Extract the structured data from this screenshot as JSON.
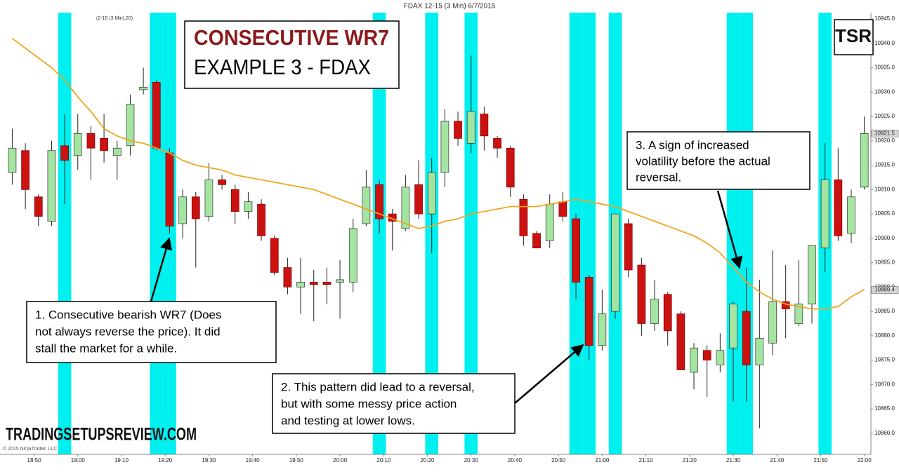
{
  "chart_data": {
    "type": "candlestick",
    "title": "FDAX 12-15 (3 Min)  6/7/2015",
    "indicator_label": "(2-15 (3 Min),20)",
    "copyright": "© 2015 NinjaTrader, LLC",
    "heading": [
      "CONSECUTIVE WR7",
      "EXAMPLE 3 - FDAX"
    ],
    "logo": "TSR",
    "watermark": "TRADINGSETUPSREVIEW.COM",
    "x": [
      1125,
      1128,
      1131,
      1134,
      1137,
      1140,
      1143,
      1146,
      1149,
      1152,
      1155,
      1158,
      1161,
      1164,
      1167,
      1170,
      1173,
      1176,
      1179,
      1182,
      1185,
      1188,
      1191,
      1194,
      1197,
      1200,
      1203,
      1206,
      1209,
      1212,
      1215,
      1218,
      1221,
      1224,
      1227,
      1230,
      1233,
      1236,
      1239,
      1242,
      1245,
      1248,
      1251,
      1254,
      1257,
      1260,
      1263,
      1266,
      1269,
      1272,
      1275,
      1278,
      1281,
      1284,
      1287,
      1290,
      1293,
      1296,
      1299,
      1302,
      1305,
      1308,
      1311,
      1314,
      1317,
      1320
    ],
    "open": [
      10913.5,
      10918,
      10908.5,
      10903.5,
      10919,
      10917,
      10921.5,
      10920.5,
      10917,
      10919,
      10930.5,
      10932,
      10917.5,
      10903,
      10908.5,
      10904.5,
      10912,
      10910,
      10905.5,
      10907,
      10900,
      10894,
      10890,
      10891,
      10891,
      10891,
      10891,
      10903,
      10911,
      10905,
      10902,
      10911,
      10905,
      10913.5,
      10924,
      10919.5,
      10925.5,
      10920.5,
      10918.5,
      10908,
      10901,
      10899.5,
      10907.5,
      10904,
      10892,
      10878,
      10885,
      10903,
      10894.5,
      10882.5,
      10888.5,
      10884.5,
      10872.5,
      10877,
      10874,
      10877.5,
      10885,
      10874,
      10878.5,
      10887,
      10882.5,
      10886.5,
      10898,
      10912,
      10901,
      10910.5
    ],
    "high": [
      10922.5,
      10919.5,
      10909,
      10920,
      10925.5,
      10925.5,
      10923,
      10925.5,
      10920,
      10929.5,
      10935,
      10932.5,
      10918.5,
      10910,
      10909.5,
      10915.5,
      10913,
      10911,
      10909.5,
      10908,
      10900.5,
      10896,
      10896,
      10893.5,
      10894,
      10895.5,
      10904,
      10914,
      10912,
      10906,
      10913,
      10916,
      10916.5,
      10926.5,
      10926,
      10937.5,
      10927,
      10921,
      10919,
      10909,
      10901.5,
      10909,
      10909.5,
      10905,
      10892.5,
      10889.5,
      10905,
      10904,
      10896,
      10891.5,
      10889,
      10885,
      10878.5,
      10878,
      10880.5,
      10887,
      10894,
      10891.5,
      10897.5,
      10894.5,
      10895.5,
      10898.5,
      10919.5,
      10918.5,
      10910,
      10925
    ],
    "low": [
      10911,
      10906,
      10902.5,
      10902.5,
      10907,
      10914,
      10912,
      10915.5,
      10912,
      10917,
      10929.5,
      10918,
      10901,
      10900,
      10894,
      10903.5,
      10910,
      10903,
      10904,
      10899.5,
      10892.5,
      10888.5,
      10884.5,
      10883,
      10886.5,
      10883.5,
      10889,
      10902.5,
      10901,
      10897.5,
      10901.5,
      10904,
      10897,
      10910.5,
      10919,
      10917.5,
      10918,
      10916.5,
      10908.5,
      10898.5,
      10898,
      10898,
      10903.5,
      10887.5,
      10875,
      10877,
      10883.5,
      10892,
      10880,
      10881,
      10878,
      10873,
      10869,
      10867.5,
      10872.5,
      10866.5,
      10866.5,
      10861,
      10876,
      10879.5,
      10882,
      10882.5,
      10893,
      10899.5,
      10899,
      10910
    ],
    "close": [
      10918.5,
      10910,
      10904.5,
      10918,
      10916,
      10921.5,
      10918.5,
      10918,
      10918.5,
      10927.5,
      10931,
      10918.5,
      10902.5,
      10908.5,
      10904,
      10912,
      10911,
      10905.5,
      10907.5,
      10900.5,
      10893,
      10890,
      10891,
      10890.5,
      10890.5,
      10891.5,
      10902,
      10910.5,
      10904,
      10903.5,
      10910.5,
      10905,
      10913.5,
      10924,
      10920.5,
      10926,
      10921,
      10918.5,
      10910.5,
      10900.5,
      10898,
      10907,
      10904.5,
      10891,
      10878,
      10884.5,
      10905,
      10893.5,
      10882.5,
      10887.5,
      10881,
      10873,
      10877.5,
      10875,
      10877,
      10886.5,
      10874,
      10879.5,
      10887,
      10885.5,
      10886.5,
      10898.5,
      10912,
      10900.5,
      10908.5,
      10921.5
    ],
    "up_color": "#a3e4a0",
    "down_color": "#cc1111",
    "moving_average": {
      "color": "#f0a522",
      "values": [
        10941,
        10939,
        10937,
        10935,
        10932.5,
        10929,
        10926,
        10922.5,
        10921,
        10920,
        10919.5,
        10918.5,
        10917.5,
        10916,
        10915,
        10914.5,
        10914,
        10913,
        10912.5,
        10912,
        10911.5,
        10911,
        10910.5,
        10910,
        10909,
        10908,
        10907,
        10906,
        10905,
        10904,
        10903,
        10902,
        10902.5,
        10903.5,
        10904,
        10905,
        10905.5,
        10906,
        10906.5,
        10906.5,
        10906.5,
        10907,
        10907.5,
        10908,
        10907.5,
        10907,
        10906.5,
        10905.5,
        10904.5,
        10903.5,
        10902.5,
        10901.5,
        10900.5,
        10899,
        10897,
        10894,
        10891,
        10889,
        10887.5,
        10886.5,
        10886,
        10885.5,
        10885.5,
        10886,
        10888,
        10889.5
      ]
    },
    "highlights": [
      1137,
      1158,
      1161,
      1209,
      1221,
      1230,
      1254,
      1257,
      1263,
      1290,
      1293,
      1311
    ],
    "highlight_color": "#00f0f0",
    "xlim": [
      1123,
      1321.5
    ],
    "ylim": [
      10856.1,
      10946.3
    ],
    "xticks": [
      {
        "value": 1130,
        "label": "18:50"
      },
      {
        "value": 1140,
        "label": "19:00"
      },
      {
        "value": 1150,
        "label": "19:10"
      },
      {
        "value": 1160,
        "label": "19:20"
      },
      {
        "value": 1170,
        "label": "19:30"
      },
      {
        "value": 1180,
        "label": "19:40"
      },
      {
        "value": 1190,
        "label": "19:50"
      },
      {
        "value": 1200,
        "label": "20:00"
      },
      {
        "value": 1210,
        "label": "20:10"
      },
      {
        "value": 1220,
        "label": "20:20"
      },
      {
        "value": 1230,
        "label": "20:30"
      },
      {
        "value": 1240,
        "label": "20:40"
      },
      {
        "value": 1250,
        "label": "20:50"
      },
      {
        "value": 1260,
        "label": "21:00"
      },
      {
        "value": 1270,
        "label": "21:10"
      },
      {
        "value": 1280,
        "label": "21:20"
      },
      {
        "value": 1290,
        "label": "21:30"
      },
      {
        "value": 1300,
        "label": "21:40"
      },
      {
        "value": 1310,
        "label": "21:50"
      },
      {
        "value": 1320,
        "label": "22:00"
      }
    ],
    "yticks": [
      {
        "value": 10860,
        "label": "10860.0"
      },
      {
        "value": 10865,
        "label": "10865.0"
      },
      {
        "value": 10870,
        "label": "10870.0"
      },
      {
        "value": 10875,
        "label": "10875.0"
      },
      {
        "value": 10880,
        "label": "10880.0"
      },
      {
        "value": 10885,
        "label": "10885.0"
      },
      {
        "value": 10890,
        "label": "10890.0"
      },
      {
        "value": 10895,
        "label": "10895.0"
      },
      {
        "value": 10900,
        "label": "10900.0"
      },
      {
        "value": 10905,
        "label": "10905.0"
      },
      {
        "value": 10910,
        "label": "10910.0"
      },
      {
        "value": 10915,
        "label": "10915.0"
      },
      {
        "value": 10920,
        "label": "10920.0"
      },
      {
        "value": 10925,
        "label": "10925.0"
      },
      {
        "value": 10930,
        "label": "10930.0"
      },
      {
        "value": 10935,
        "label": "10935.0"
      },
      {
        "value": 10940,
        "label": "10940.0"
      },
      {
        "value": 10945,
        "label": "10945.0"
      }
    ],
    "price_markers": [
      {
        "value": 10921.5,
        "label": "10921.5"
      },
      {
        "value": 10889.4,
        "label": "10889.4"
      }
    ],
    "annotations": [
      {
        "lines": [
          "1. Consecutive bearish WR7 (Does",
          "not always  reverse the price). It did",
          "stall the market for a while."
        ]
      },
      {
        "lines": [
          "2. This pattern did lead to a reversal,",
          "but with  some messy price action",
          "and testing at lower lows."
        ]
      },
      {
        "lines": [
          "3. A sign of increased",
          "volatility  before the actual",
          "reversal."
        ]
      }
    ]
  }
}
